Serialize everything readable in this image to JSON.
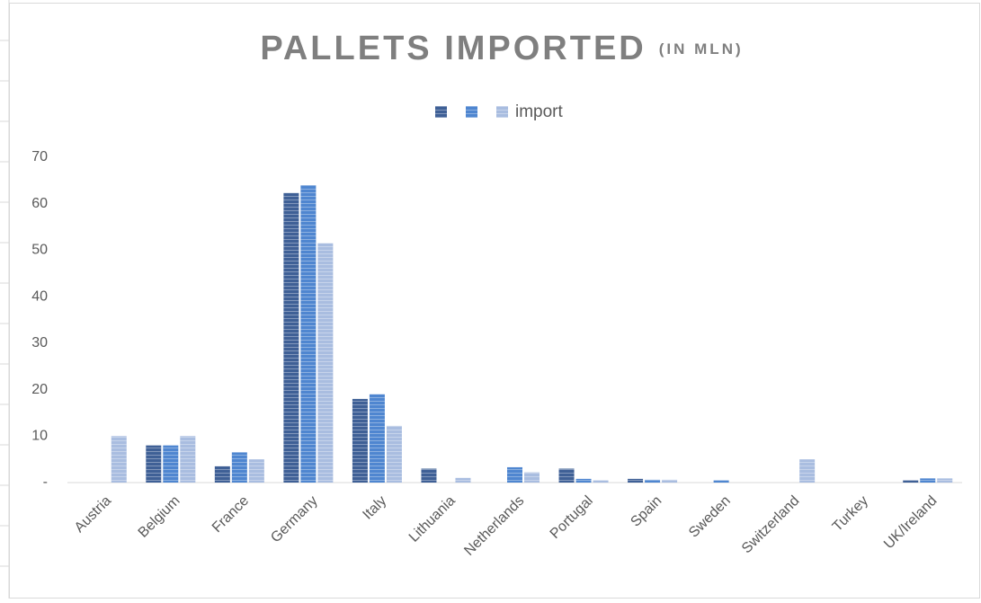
{
  "chart_data": {
    "type": "bar",
    "title": "PALLETS IMPORTED",
    "subtitle": "(IN MLN)",
    "categories": [
      "Austria",
      "Belgium",
      "France",
      "Germany",
      "Italy",
      "Lithuania",
      "Netherlands",
      "Portugal",
      "Spain",
      "Sweden",
      "Switzerland",
      "Turkey",
      "UK/Ireland"
    ],
    "series": [
      {
        "color": "#3f6096",
        "values": [
          0,
          8,
          3.5,
          62.3,
          18,
          3,
          0,
          3,
          0.8,
          0,
          0,
          0,
          0.5
        ]
      },
      {
        "color": "#4f86d0",
        "values": [
          0,
          8,
          6.5,
          64,
          19,
          0,
          3.3,
          0.8,
          0.6,
          0.5,
          0,
          0,
          0.9
        ]
      },
      {
        "name": "import",
        "color": "#a9bde0",
        "values": [
          10,
          10,
          5,
          51.5,
          12.2,
          1,
          2.2,
          0.5,
          0.6,
          0,
          5,
          0,
          0.9
        ]
      }
    ],
    "ylim": [
      0,
      70
    ],
    "yticks": [
      {
        "value": 0,
        "label": "-"
      },
      10,
      20,
      30,
      40,
      50,
      60,
      70
    ],
    "legend": "top"
  }
}
